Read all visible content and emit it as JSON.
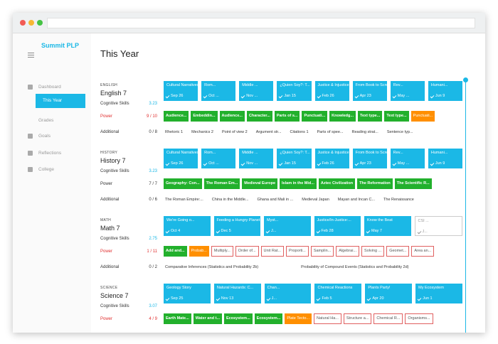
{
  "sidebar": {
    "logo": "Summit PLP",
    "nav": [
      {
        "label": "Dashboard"
      },
      {
        "label": "This Year",
        "active": true
      },
      {
        "label": "Grades"
      },
      {
        "label": "Goals"
      },
      {
        "label": "Reflections"
      },
      {
        "label": "College"
      }
    ]
  },
  "page": {
    "title": "This Year"
  },
  "subjects": [
    {
      "label": "ENGLISH",
      "name": "English 7",
      "cognitive_label": "Cognitive Skills",
      "cognitive": "3.23",
      "power_label": "Power",
      "power": "9 / 10",
      "power_status": "behind",
      "additional_label": "Additional",
      "additional": "0 / 8",
      "projects": [
        {
          "title": "Cultural Narratives Proj...",
          "date": "Sep 26",
          "status": "done"
        },
        {
          "title": "Rom...",
          "date": "Oct ...",
          "status": "done"
        },
        {
          "title": "Middle ...",
          "date": "Nov ...",
          "status": "done"
        },
        {
          "title": "¿Quien Soy?: T...",
          "date": "Jan 15",
          "status": "done"
        },
        {
          "title": "Justice & Injustice In...",
          "date": "Feb 26",
          "status": "done"
        },
        {
          "title": "From Book to Screen",
          "date": "Apr 23",
          "status": "done"
        },
        {
          "title": "Rev...",
          "date": "May ...",
          "status": "done"
        },
        {
          "title": "Humani...",
          "date": "Jun 9",
          "status": "done"
        }
      ],
      "power_focus": [
        {
          "title": "Audience...",
          "status": "done"
        },
        {
          "title": "Embeddin...",
          "status": "done"
        },
        {
          "title": "Audience...",
          "status": "done"
        },
        {
          "title": "Character...",
          "status": "done"
        },
        {
          "title": "Parts of s...",
          "status": "done"
        },
        {
          "title": "Punctuati...",
          "status": "done"
        },
        {
          "title": "Knowledg...",
          "status": "done"
        },
        {
          "title": "Text type...",
          "status": "done"
        },
        {
          "title": "Text type...",
          "status": "done"
        },
        {
          "title": "Punctuati...",
          "status": "current"
        }
      ],
      "additional_focus": [
        "Rhetoric 1",
        "Mechanics 2",
        "Point of view 2",
        "Argument str...",
        "Citations 1",
        "Parts of spee...",
        "Reading strat...",
        "Sentence typ..."
      ]
    },
    {
      "label": "HISTORY",
      "name": "History 7",
      "cognitive_label": "Cognitive Skills",
      "cognitive": "3.23",
      "power_label": "Power",
      "power": "7 / 7",
      "power_status": "ok",
      "additional_label": "Additional",
      "additional": "0 / 6",
      "projects": [
        {
          "title": "Cultural Narratives Proj...",
          "date": "Sep 26",
          "status": "done"
        },
        {
          "title": "Rom...",
          "date": "Oct ...",
          "status": "done"
        },
        {
          "title": "Middle ...",
          "date": "Nov ...",
          "status": "done"
        },
        {
          "title": "¿Quien Soy?: T...",
          "date": "Jan 15",
          "status": "done"
        },
        {
          "title": "Justice & Injustice In...",
          "date": "Feb 26",
          "status": "done"
        },
        {
          "title": "From Book to Screen",
          "date": "Apr 23",
          "status": "done"
        },
        {
          "title": "Rev...",
          "date": "May ...",
          "status": "done"
        },
        {
          "title": "Humani...",
          "date": "Jun 9",
          "status": "done"
        }
      ],
      "power_focus": [
        {
          "title": "Geography: Con...",
          "status": "done"
        },
        {
          "title": "The Roman Em...",
          "status": "done"
        },
        {
          "title": "Medieval Europe",
          "status": "done"
        },
        {
          "title": "Islam in the Mid...",
          "status": "done"
        },
        {
          "title": "Aztec Civilization",
          "status": "done"
        },
        {
          "title": "The Reformation",
          "status": "done"
        },
        {
          "title": "The Scientific R...",
          "status": "done"
        }
      ],
      "additional_focus": [
        "The Roman Empire:...",
        "China in the Middle...",
        "Ghana and Mali in ...",
        "Medieval Japan",
        "Mayan and Incan C...",
        "The Renaissance"
      ]
    },
    {
      "label": "MATH",
      "name": "Math 7",
      "cognitive_label": "Cognitive Skills",
      "cognitive": "2.75",
      "power_label": "Power",
      "power": "1 / 11",
      "power_status": "behind",
      "additional_label": "Additional",
      "additional": "0 / 2",
      "projects": [
        {
          "title": "We're Going o...",
          "date": "Oct 4",
          "status": "done"
        },
        {
          "title": "Feeding a Hungry Planet",
          "date": "Dec 5",
          "status": "done"
        },
        {
          "title": "Myst...",
          "date": "J...",
          "status": "done"
        },
        {
          "title": "Justice/In-Justice:...",
          "date": "Feb 28",
          "status": "done"
        },
        {
          "title": "Know the Beat",
          "date": "May 7",
          "status": "done"
        },
        {
          "title": "CSI ...",
          "date": "J...",
          "status": "todo"
        }
      ],
      "power_focus": [
        {
          "title": "Add and...",
          "status": "done"
        },
        {
          "title": "Probab...",
          "status": "current"
        },
        {
          "title": "Multiply...",
          "status": "todo"
        },
        {
          "title": "Order of...",
          "status": "todo"
        },
        {
          "title": "Unit Rat...",
          "status": "todo"
        },
        {
          "title": "Proporti...",
          "status": "todo"
        },
        {
          "title": "Samplin...",
          "status": "todo"
        },
        {
          "title": "Algebrai...",
          "status": "todo"
        },
        {
          "title": "Solving ...",
          "status": "todo"
        },
        {
          "title": "Geomet...",
          "status": "todo"
        },
        {
          "title": "Area an...",
          "status": "todo"
        }
      ],
      "additional_focus": [
        "Comparative Inferences (Statistics and Probability 2b)",
        "Probability of Compound Events (Statistics and Probability 2d)"
      ]
    },
    {
      "label": "SCIENCE",
      "name": "Science 7",
      "cognitive_label": "Cognitive Skills",
      "cognitive": "3.07",
      "power_label": "Power",
      "power": "4 / 9",
      "power_status": "behind",
      "projects": [
        {
          "title": "Geology Story",
          "date": "Sep 25",
          "status": "done"
        },
        {
          "title": "Natural Hazards: C...",
          "date": "Nov 13",
          "status": "done"
        },
        {
          "title": "Chan...",
          "date": "J...",
          "status": "done"
        },
        {
          "title": "Chemical Reactions",
          "date": "Feb 5",
          "status": "done"
        },
        {
          "title": "Plants Party!",
          "date": "Apr 20",
          "status": "done"
        },
        {
          "title": "My Ecosystem",
          "date": "Jun 1",
          "status": "done"
        }
      ],
      "power_focus": [
        {
          "title": "Earth Mate...",
          "status": "done"
        },
        {
          "title": "Water and t...",
          "status": "done"
        },
        {
          "title": "Ecosystem...",
          "status": "done"
        },
        {
          "title": "Ecosystem...",
          "status": "done"
        },
        {
          "title": "Plate Tecto...",
          "status": "current"
        },
        {
          "title": "Natural Ha...",
          "status": "todo"
        },
        {
          "title": "Structure a...",
          "status": "todo"
        },
        {
          "title": "Chemical R...",
          "status": "todo"
        },
        {
          "title": "Organisms...",
          "status": "todo"
        }
      ]
    }
  ]
}
